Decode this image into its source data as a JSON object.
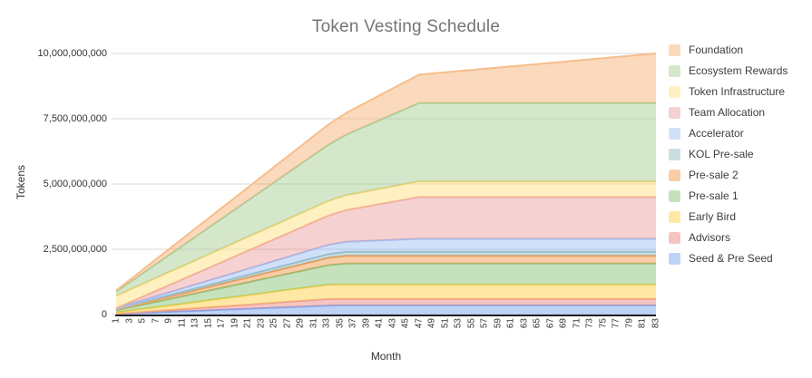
{
  "title": "Token Vesting Schedule",
  "chart_data": {
    "type": "area",
    "stacked": true,
    "title": "Token Vesting Schedule",
    "xlabel": "Month",
    "ylabel": "Tokens",
    "x_range": [
      1,
      83
    ],
    "y_range": [
      0,
      10000000000
    ],
    "grid": true,
    "legend_position": "right",
    "legend_order": "top-of-stack-first",
    "x_ticks": [
      1,
      3,
      5,
      7,
      9,
      11,
      13,
      15,
      17,
      19,
      21,
      23,
      25,
      27,
      29,
      31,
      33,
      35,
      37,
      39,
      41,
      43,
      45,
      47,
      49,
      51,
      53,
      55,
      57,
      59,
      61,
      63,
      65,
      67,
      69,
      71,
      73,
      75,
      77,
      79,
      81,
      83
    ],
    "y_ticks": [
      {
        "value": 0,
        "label": "0"
      },
      {
        "value": 2500000000,
        "label": "2,500,000,000"
      },
      {
        "value": 5000000000,
        "label": "5,000,000,000"
      },
      {
        "value": 7500000000,
        "label": "7,500,000,000"
      },
      {
        "value": 10000000000,
        "label": "10,000,000,000"
      }
    ],
    "series_note": "bottom of stack first; points are [month, tokens-vested] breakpoints of piecewise-linear vesting",
    "series": [
      {
        "name": "Seed & Pre Seed",
        "color": "#88abf2",
        "fill": "rgba(109,158,235,0.45)",
        "total": 350000000,
        "points": [
          [
            1,
            20000000
          ],
          [
            34,
            350000000
          ],
          [
            83,
            350000000
          ]
        ]
      },
      {
        "name": "Advisors",
        "color": "#ee9d95",
        "fill": "rgba(232,117,108,0.42)",
        "total": 250000000,
        "points": [
          [
            1,
            10000000
          ],
          [
            33,
            250000000
          ],
          [
            83,
            250000000
          ]
        ]
      },
      {
        "name": "Early Bird",
        "color": "#eed252",
        "fill": "rgba(255,210,77,0.50)",
        "total": 550000000,
        "points": [
          [
            1,
            50000000
          ],
          [
            33,
            550000000
          ],
          [
            83,
            550000000
          ]
        ]
      },
      {
        "name": "Pre-sale 1",
        "color": "#94c47f",
        "fill": "rgba(127,191,107,0.45)",
        "total": 800000000,
        "points": [
          [
            1,
            80000000
          ],
          [
            36,
            800000000
          ],
          [
            83,
            800000000
          ]
        ]
      },
      {
        "name": "Pre-sale 2",
        "color": "#f2a259",
        "fill": "rgba(240,144,60,0.45)",
        "total": 300000000,
        "points": [
          [
            1,
            30000000
          ],
          [
            36,
            300000000
          ],
          [
            83,
            300000000
          ]
        ]
      },
      {
        "name": "KOL Pre-sale",
        "color": "#a2c5c9",
        "fill": "rgba(118,165,175,0.38)",
        "total": 150000000,
        "points": [
          [
            1,
            25000000
          ],
          [
            36,
            150000000
          ],
          [
            83,
            150000000
          ]
        ]
      },
      {
        "name": "Accelerator",
        "color": "#a9c3f6",
        "fill": "rgba(109,158,235,0.32)",
        "total": 500000000,
        "points": [
          [
            1,
            25000000
          ],
          [
            47,
            500000000
          ],
          [
            83,
            500000000
          ]
        ]
      },
      {
        "name": "Team Allocation",
        "color": "#eeaaa6",
        "fill": "rgba(224,102,102,0.30)",
        "total": 1600000000,
        "points": [
          [
            1,
            0
          ],
          [
            47,
            1600000000
          ],
          [
            83,
            1600000000
          ]
        ]
      },
      {
        "name": "Token Infrastructure",
        "color": "#eed87e",
        "fill": "rgba(255,217,102,0.40)",
        "total": 600000000,
        "points": [
          [
            1,
            480000000
          ],
          [
            47,
            600000000
          ],
          [
            83,
            600000000
          ]
        ]
      },
      {
        "name": "Ecosystem Rewards",
        "color": "#abd2a2",
        "fill": "rgba(147,196,125,0.40)",
        "total": 3000000000,
        "points": [
          [
            1,
            150000000
          ],
          [
            47,
            3000000000
          ],
          [
            83,
            3000000000
          ]
        ]
      },
      {
        "name": "Foundation",
        "color": "#f6be8b",
        "fill": "rgba(246,165,95,0.42)",
        "total": 1900000000,
        "points": [
          [
            1,
            50000000
          ],
          [
            83,
            1900000000
          ]
        ]
      }
    ]
  }
}
